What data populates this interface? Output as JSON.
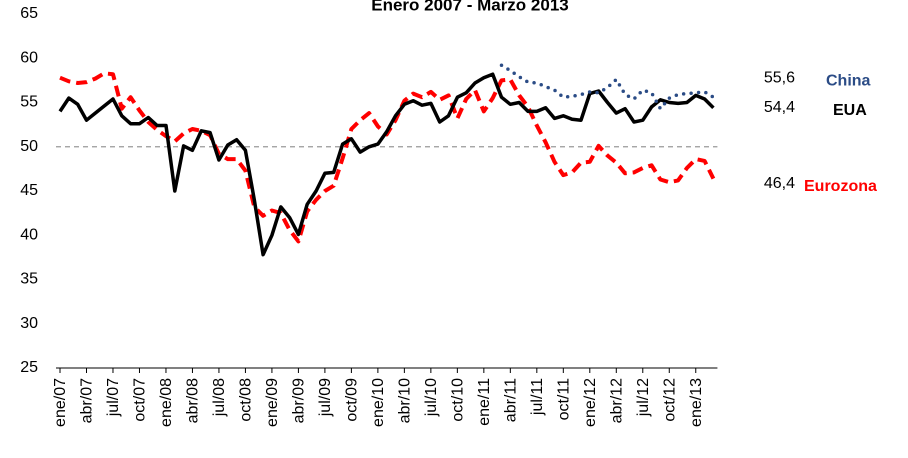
{
  "chart_data": {
    "type": "line",
    "title": "Enero 2007  - Marzo 2013",
    "categories": [
      "ene/07",
      null,
      null,
      "abr/07",
      null,
      null,
      "jul/07",
      null,
      null,
      "oct/07",
      null,
      null,
      "ene/08",
      null,
      null,
      "abr/08",
      null,
      null,
      "jul/08",
      null,
      null,
      "oct/08",
      null,
      null,
      "ene/09",
      null,
      null,
      "abr/09",
      null,
      null,
      "jul/09",
      null,
      null,
      "oct/09",
      null,
      null,
      "ene/10",
      null,
      null,
      "abr/10",
      null,
      null,
      "jul/10",
      null,
      null,
      "oct/10",
      null,
      null,
      "ene/11",
      null,
      null,
      "abr/11",
      null,
      null,
      "jul/11",
      null,
      null,
      "oct/11",
      null,
      null,
      "ene/12",
      null,
      null,
      "abr/12",
      null,
      null,
      "jul/12",
      null,
      null,
      "oct/12",
      null,
      null,
      "ene/13",
      null,
      null
    ],
    "series": [
      {
        "name": "China",
        "color": "#2b4c86",
        "style": "dotted",
        "end_label": "55,6",
        "values": [
          null,
          null,
          null,
          null,
          null,
          null,
          null,
          null,
          null,
          null,
          null,
          null,
          null,
          null,
          null,
          null,
          null,
          null,
          null,
          null,
          null,
          null,
          null,
          null,
          null,
          null,
          null,
          null,
          null,
          null,
          null,
          null,
          null,
          null,
          null,
          null,
          null,
          null,
          null,
          null,
          null,
          null,
          null,
          null,
          null,
          null,
          null,
          null,
          null,
          null,
          59.2,
          58.6,
          57.9,
          57.3,
          57.2,
          56.8,
          56.4,
          55.6,
          55.7,
          55.9,
          56.2,
          56.1,
          56.7,
          57.6,
          55.9,
          55.4,
          56.4,
          56.1,
          54.3,
          55.5,
          55.9,
          56.0,
          56.1,
          56.2,
          55.6
        ]
      },
      {
        "name": "EUA",
        "color": "#000000",
        "style": "solid",
        "end_label": "54,4",
        "values": [
          54.0,
          55.5,
          54.8,
          53.0,
          53.8,
          54.6,
          55.4,
          53.5,
          52.6,
          52.6,
          53.3,
          52.4,
          52.4,
          45.0,
          50.1,
          49.6,
          51.8,
          51.6,
          48.5,
          50.2,
          50.8,
          49.6,
          44.0,
          37.8,
          40.0,
          43.2,
          42.0,
          40.1,
          43.5,
          45.0,
          47.0,
          47.1,
          50.3,
          50.9,
          49.4,
          50.0,
          50.3,
          51.7,
          53.5,
          54.8,
          55.2,
          54.7,
          54.9,
          52.8,
          53.5,
          55.6,
          56.1,
          57.2,
          57.8,
          58.2,
          55.6,
          54.8,
          55.0,
          54.0,
          54.0,
          54.4,
          53.2,
          53.5,
          53.1,
          53.0,
          56.0,
          56.3,
          55.0,
          53.8,
          54.3,
          52.8,
          53.0,
          54.5,
          55.3,
          55.0,
          54.9,
          55.0,
          55.8,
          55.4,
          54.4
        ]
      },
      {
        "name": "Eurozona",
        "color": "#ff0000",
        "style": "dashed",
        "end_label": "46,4",
        "values": [
          57.8,
          57.4,
          57.2,
          57.3,
          57.7,
          58.3,
          58.2,
          54.3,
          55.6,
          54.1,
          52.8,
          51.9,
          51.2,
          50.6,
          51.5,
          52.0,
          51.8,
          51.3,
          49.2,
          48.6,
          48.6,
          47.3,
          43.2,
          42.2,
          42.8,
          42.5,
          40.6,
          39.3,
          42.7,
          44.0,
          45.0,
          45.6,
          48.7,
          52.0,
          53.0,
          53.8,
          52.3,
          51.4,
          53.0,
          55.2,
          56.0,
          55.6,
          56.2,
          55.3,
          55.8,
          53.2,
          55.4,
          56.4,
          54.0,
          55.5,
          57.5,
          57.6,
          55.8,
          54.5,
          52.4,
          50.5,
          48.3,
          46.8,
          47.1,
          48.2,
          48.3,
          50.1,
          49.0,
          48.2,
          47.0,
          47.1,
          47.6,
          47.9,
          46.3,
          46.0,
          46.2,
          47.6,
          48.6,
          48.4,
          46.4
        ]
      }
    ],
    "ylim": [
      25,
      65
    ],
    "yticks": [
      25,
      30,
      35,
      40,
      45,
      50,
      55,
      60,
      65
    ],
    "reference_line": 50,
    "grid": false
  }
}
